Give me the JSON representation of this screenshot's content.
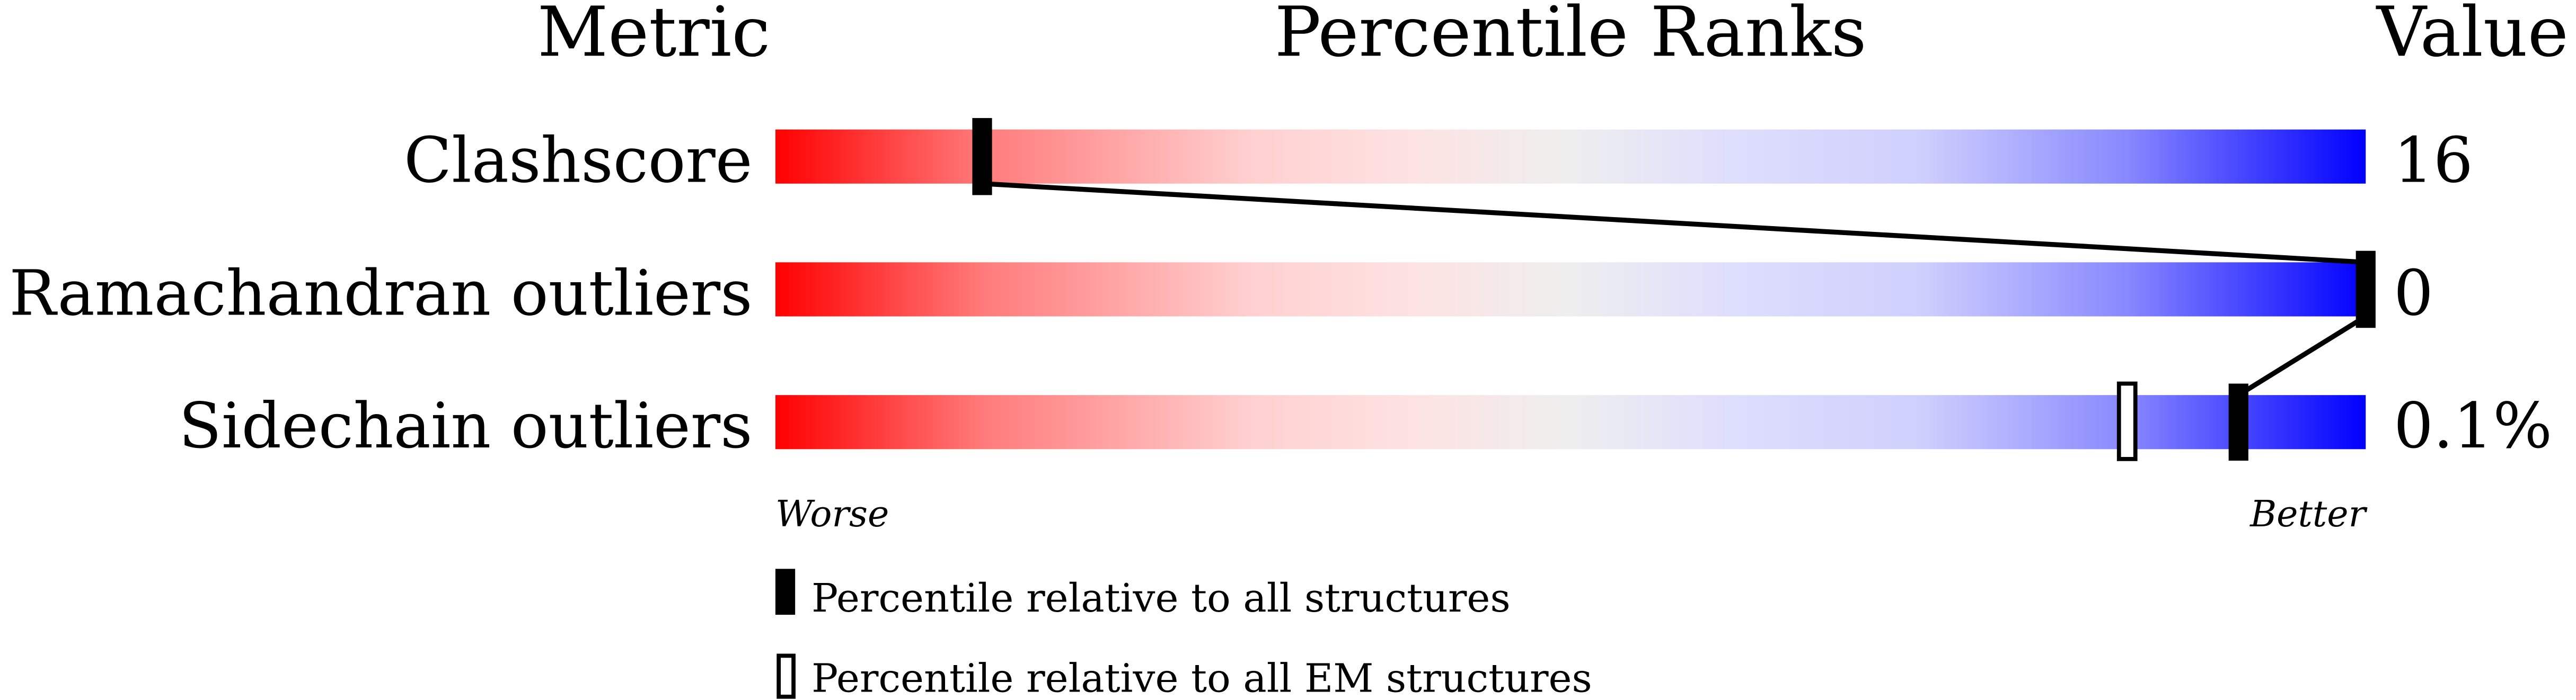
{
  "chart_data": {
    "type": "bar",
    "headers": {
      "metric": "Metric",
      "ranks": "Percentile Ranks",
      "value": "Value"
    },
    "xlim": [
      0,
      100
    ],
    "rows": [
      {
        "metric": "Clashscore",
        "value": "16",
        "percentile_all": 13,
        "percentile_em": null
      },
      {
        "metric": "Ramachandran outliers",
        "value": "0",
        "percentile_all": 100,
        "percentile_em": null
      },
      {
        "metric": "Sidechain outliers",
        "value": "0.1%",
        "percentile_all": 92,
        "percentile_em": 85
      }
    ],
    "axis_labels": {
      "worse": "Worse",
      "better": "Better"
    },
    "legend": [
      {
        "marker": "filled",
        "label": "Percentile relative to all structures"
      },
      {
        "marker": "hollow",
        "label": "Percentile relative to all EM structures"
      }
    ],
    "colors": {
      "worse": "#ff0000",
      "middle": "#eeeeee",
      "better": "#0000ff",
      "marker": "#000000"
    }
  }
}
